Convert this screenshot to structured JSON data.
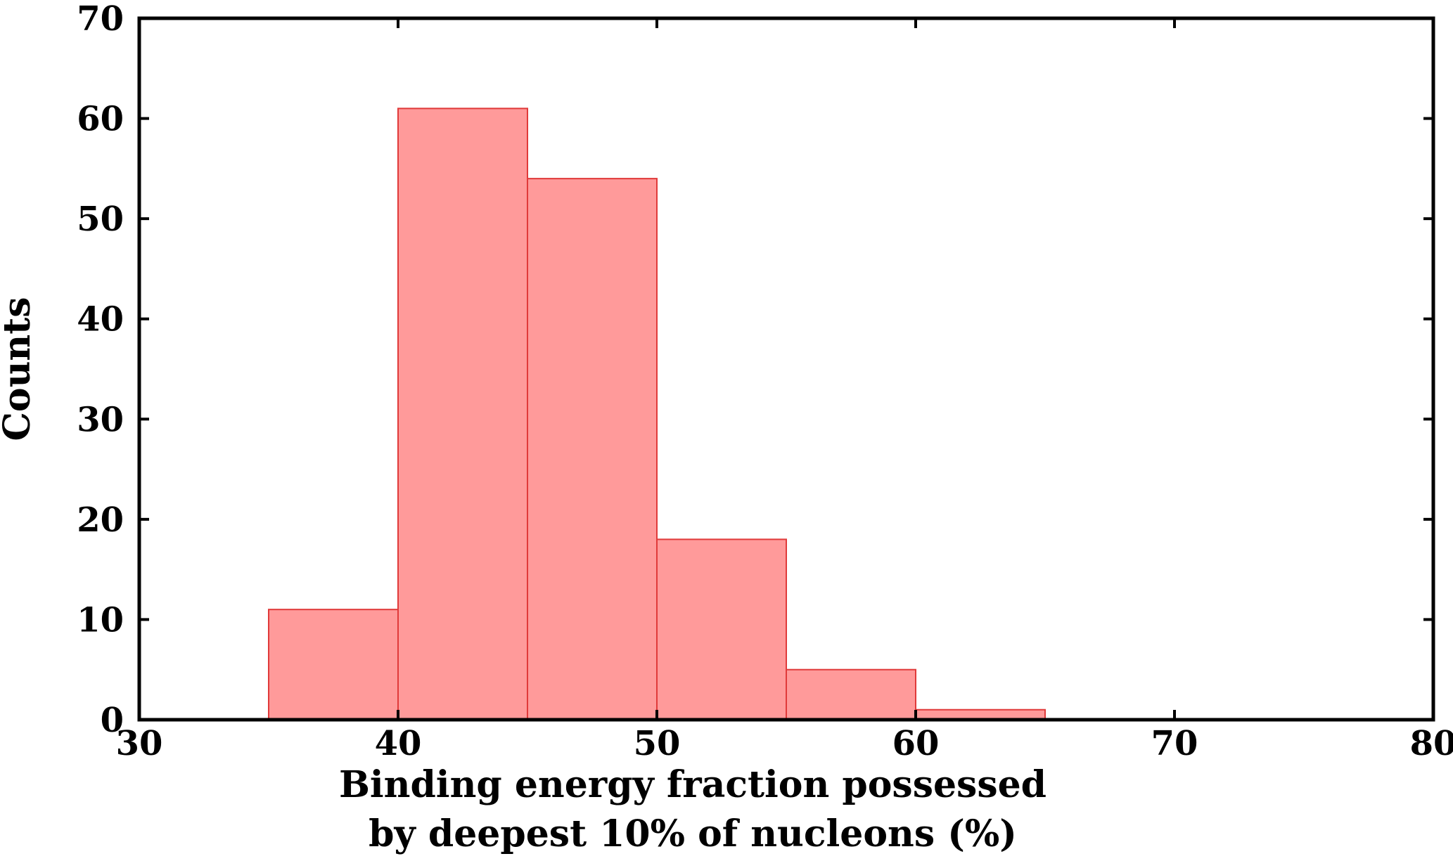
{
  "chart_data": {
    "type": "bar",
    "histogram": true,
    "bins": [
      {
        "start": 35,
        "end": 40,
        "count": 11
      },
      {
        "start": 40,
        "end": 45,
        "count": 61
      },
      {
        "start": 45,
        "end": 50,
        "count": 54
      },
      {
        "start": 50,
        "end": 55,
        "count": 18
      },
      {
        "start": 55,
        "end": 60,
        "count": 5
      },
      {
        "start": 60,
        "end": 65,
        "count": 1
      }
    ],
    "xlabel_line1": "Binding energy fraction possessed",
    "xlabel_line2": "by deepest 10% of nucleons (%)",
    "ylabel": "Counts",
    "xlim": [
      30,
      80
    ],
    "ylim": [
      0,
      70
    ],
    "xticks": [
      30,
      40,
      50,
      60,
      70,
      80
    ],
    "yticks": [
      0,
      10,
      20,
      30,
      40,
      50,
      60,
      70
    ],
    "grid": false,
    "legend": "none",
    "colors": {
      "bar_fill": "#ff9a9a",
      "bar_edge": "#e03a3a",
      "axes": "#000000"
    }
  }
}
